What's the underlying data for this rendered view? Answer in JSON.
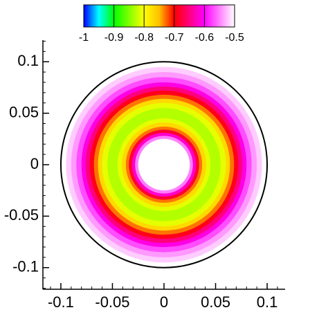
{
  "chart_data": {
    "type": "contour",
    "xlim": [
      -0.1174,
      0.1174
    ],
    "ylim": [
      -0.121,
      0.121
    ],
    "xticks": [
      -0.1,
      -0.05,
      0,
      0.05,
      0.1
    ],
    "yticks": [
      0.1,
      0.05,
      0,
      -0.05,
      -0.1
    ],
    "minor_step": 0.01,
    "boundary_radius": 0.1,
    "r": [
      0.025,
      0.028,
      0.031,
      0.034,
      0.037,
      0.041,
      0.045,
      0.05,
      0.055,
      0.06,
      0.064,
      0.068,
      0.072,
      0.076,
      0.08,
      0.085,
      0.09,
      0.095,
      0.1
    ],
    "values": [
      -0.55,
      -0.62,
      -0.68,
      -0.73,
      -0.77,
      -0.81,
      -0.83,
      -0.83,
      -0.81,
      -0.77,
      -0.73,
      -0.69,
      -0.65,
      -0.61,
      -0.57,
      -0.54,
      -0.52,
      -0.5
    ],
    "clim": [
      -1,
      -0.5
    ],
    "cticks": [
      -1,
      -0.9,
      -0.8,
      -0.7,
      -0.6,
      -0.5
    ],
    "colormap": [
      {
        "value": -1,
        "color": "#0000ff"
      },
      {
        "value": -0.95,
        "color": "#00ffff"
      },
      {
        "value": -0.9,
        "color": "#00ff00"
      },
      {
        "value": -0.85,
        "color": "#80ff00"
      },
      {
        "value": -0.8,
        "color": "#ffff00"
      },
      {
        "value": -0.75,
        "color": "#ffc000"
      },
      {
        "value": -0.7,
        "color": "#ff0000"
      },
      {
        "value": -0.6,
        "color": "#ff00ff"
      },
      {
        "value": -0.5,
        "color": "#ffffff"
      }
    ]
  }
}
